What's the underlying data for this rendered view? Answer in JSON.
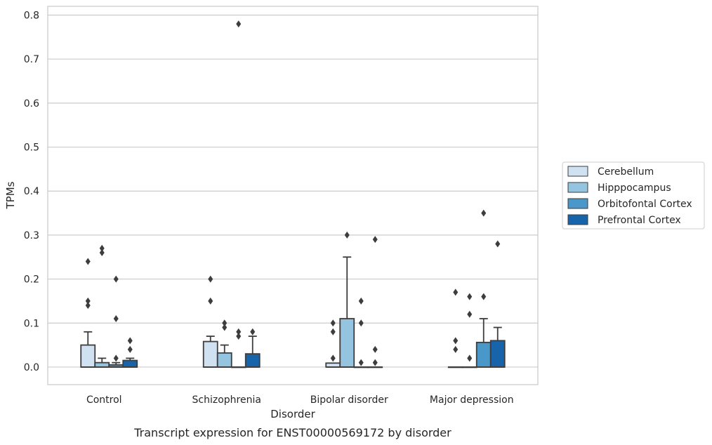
{
  "chart_data": {
    "type": "box",
    "caption": "Transcript expression for ENST00000569172 by disorder",
    "xlabel": "Disorder",
    "ylabel": "TPMs",
    "ylim": [
      -0.04,
      0.82
    ],
    "yticks": [
      0.0,
      0.1,
      0.2,
      0.3,
      0.4,
      0.5,
      0.6,
      0.7,
      0.8
    ],
    "ytick_labels": [
      "0.0",
      "0.1",
      "0.2",
      "0.3",
      "0.4",
      "0.5",
      "0.6",
      "0.7",
      "0.8"
    ],
    "grid": true,
    "legend_position": "right",
    "categories": [
      "Control",
      "Schizophrenia",
      "Bipolar disorder",
      "Major depression"
    ],
    "series": [
      {
        "name": "Cerebellum",
        "color": "#d0e1f2",
        "boxes": [
          {
            "q1": 0.0,
            "median": 0.0,
            "q3": 0.05,
            "whisker_low": 0.0,
            "whisker_high": 0.08,
            "outliers": [
              0.24,
              0.15,
              0.14
            ]
          },
          {
            "q1": 0.0,
            "median": 0.0,
            "q3": 0.058,
            "whisker_low": 0.0,
            "whisker_high": 0.07,
            "outliers": [
              0.2,
              0.15
            ]
          },
          {
            "q1": 0.0,
            "median": 0.0,
            "q3": 0.009,
            "whisker_low": 0.0,
            "whisker_high": 0.009,
            "outliers": [
              0.1,
              0.08,
              0.02
            ]
          },
          {
            "q1": 0.0,
            "median": 0.0,
            "q3": 0.0,
            "whisker_low": 0.0,
            "whisker_high": 0.0,
            "outliers": [
              0.17,
              0.06,
              0.04
            ]
          }
        ]
      },
      {
        "name": "Hipppocampus",
        "color": "#94c4df",
        "boxes": [
          {
            "q1": 0.0,
            "median": 0.0,
            "q3": 0.01,
            "whisker_low": 0.0,
            "whisker_high": 0.02,
            "outliers": [
              0.27,
              0.26
            ]
          },
          {
            "q1": 0.0,
            "median": 0.0,
            "q3": 0.032,
            "whisker_low": 0.0,
            "whisker_high": 0.05,
            "outliers": [
              0.1,
              0.09
            ]
          },
          {
            "q1": 0.0,
            "median": 0.0,
            "q3": 0.11,
            "whisker_low": 0.0,
            "whisker_high": 0.25,
            "outliers": [
              0.3
            ]
          },
          {
            "q1": 0.0,
            "median": 0.0,
            "q3": 0.0,
            "whisker_low": 0.0,
            "whisker_high": 0.0,
            "outliers": [
              0.16,
              0.12,
              0.02
            ]
          }
        ]
      },
      {
        "name": "Orbitofontal Cortex",
        "color": "#4a98c9",
        "boxes": [
          {
            "q1": 0.0,
            "median": 0.0,
            "q3": 0.005,
            "whisker_low": 0.0,
            "whisker_high": 0.01,
            "outliers": [
              0.2,
              0.11,
              0.02
            ]
          },
          {
            "q1": 0.0,
            "median": 0.0,
            "q3": 0.0,
            "whisker_low": 0.0,
            "whisker_high": 0.0,
            "outliers": [
              0.78,
              0.08,
              0.07
            ]
          },
          {
            "q1": 0.0,
            "median": 0.0,
            "q3": 0.0,
            "whisker_low": 0.0,
            "whisker_high": 0.0,
            "outliers": [
              0.15,
              0.1,
              0.01
            ]
          },
          {
            "q1": 0.0,
            "median": 0.0,
            "q3": 0.056,
            "whisker_low": 0.0,
            "whisker_high": 0.11,
            "outliers": [
              0.35,
              0.16
            ]
          }
        ]
      },
      {
        "name": "Prefrontal Cortex",
        "color": "#1764ab",
        "boxes": [
          {
            "q1": 0.0,
            "median": 0.0,
            "q3": 0.015,
            "whisker_low": 0.0,
            "whisker_high": 0.02,
            "outliers": [
              0.06,
              0.04
            ]
          },
          {
            "q1": 0.0,
            "median": 0.0,
            "q3": 0.03,
            "whisker_low": 0.0,
            "whisker_high": 0.07,
            "outliers": [
              0.08
            ]
          },
          {
            "q1": 0.0,
            "median": 0.0,
            "q3": 0.0,
            "whisker_low": 0.0,
            "whisker_high": 0.0,
            "outliers": [
              0.29,
              0.04,
              0.01
            ]
          },
          {
            "q1": 0.0,
            "median": 0.0,
            "q3": 0.06,
            "whisker_low": 0.0,
            "whisker_high": 0.09,
            "outliers": [
              0.28
            ]
          }
        ]
      }
    ]
  }
}
